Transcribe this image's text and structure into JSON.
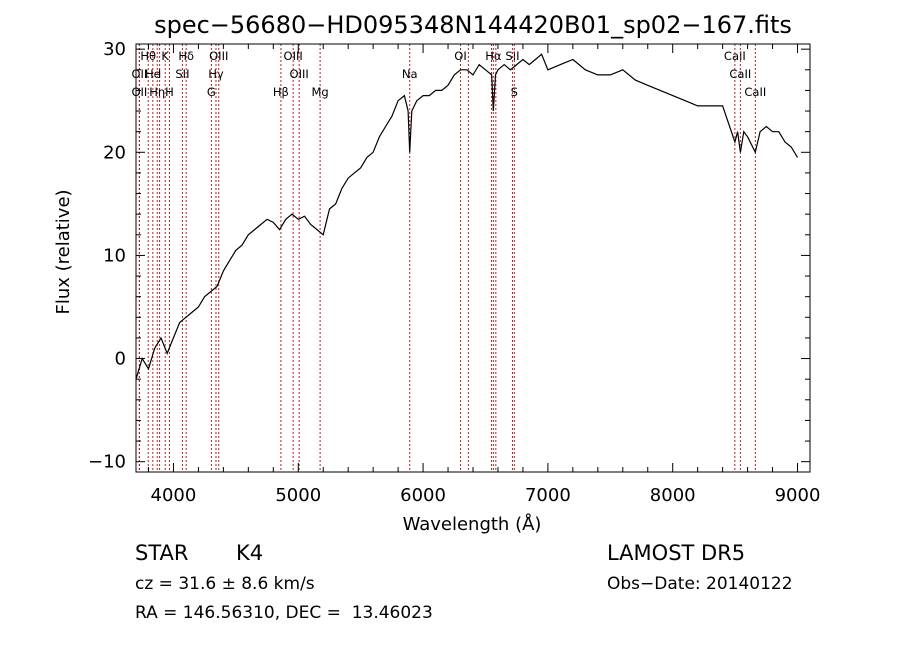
{
  "chart_data": {
    "type": "line",
    "title": "spec−56680−HD095348N144420B01_sp02−167.fits",
    "xlabel": "Wavelength (Å)",
    "ylabel": "Flux (relative)",
    "xlim": [
      3700,
      9100
    ],
    "ylim": [
      -11,
      30.5
    ],
    "xticks": [
      4000,
      5000,
      6000,
      7000,
      8000,
      9000
    ],
    "yticks": [
      -10,
      0,
      10,
      20,
      30
    ],
    "ytick_labels": [
      "−10",
      "0",
      "10",
      "20",
      "30"
    ],
    "grid": false,
    "series": [
      {
        "x": [
          3700,
          3750,
          3800,
          3850,
          3900,
          3950,
          4000,
          4050,
          4100,
          4150,
          4200,
          4250,
          4300,
          4350,
          4400,
          4450,
          4500,
          4550,
          4600,
          4650,
          4700,
          4750,
          4800,
          4850,
          4900,
          4950,
          5000,
          5050,
          5100,
          5150,
          5200,
          5250,
          5300,
          5350,
          5400,
          5450,
          5500,
          5550,
          5600,
          5650,
          5700,
          5750,
          5800,
          5850,
          5880,
          5893,
          5910,
          5950,
          6000,
          6050,
          6100,
          6150,
          6200,
          6250,
          6300,
          6350,
          6400,
          6450,
          6500,
          6550,
          6563,
          6580,
          6600,
          6650,
          6700,
          6750,
          6800,
          6850,
          6900,
          6950,
          7000,
          7100,
          7200,
          7300,
          7400,
          7500,
          7600,
          7700,
          7800,
          7900,
          8000,
          8100,
          8200,
          8300,
          8400,
          8498,
          8520,
          8542,
          8570,
          8600,
          8662,
          8700,
          8750,
          8800,
          8850,
          8900,
          8950,
          9000
        ],
        "y": [
          -2,
          0,
          -1,
          1,
          2,
          0.5,
          2,
          3.5,
          4,
          4.5,
          5,
          6,
          6.5,
          7,
          8.5,
          9.5,
          10.5,
          11,
          12,
          12.5,
          13,
          13.5,
          13.2,
          12.5,
          13.5,
          14,
          13.5,
          13.8,
          13,
          12.5,
          12,
          14.5,
          15,
          16.5,
          17.5,
          18,
          18.5,
          19.5,
          20,
          21.5,
          22.5,
          23.5,
          25,
          25.5,
          24,
          20,
          24,
          25,
          25.5,
          25.5,
          26,
          26,
          26.5,
          27.5,
          28,
          28,
          27.5,
          28.5,
          28,
          27.5,
          24,
          27.5,
          28,
          28.5,
          28,
          28.5,
          29,
          28.5,
          29,
          29.5,
          28,
          28.5,
          29,
          28,
          27.5,
          27.5,
          28,
          27,
          26.5,
          26,
          25.5,
          25,
          24.5,
          24.5,
          24.5,
          21,
          22,
          20,
          22,
          21.5,
          20,
          22,
          22.5,
          22,
          22,
          21,
          20.5,
          19.5
        ]
      }
    ],
    "annotation_lines": [
      {
        "wavelength": 3798,
        "label": "Hθ",
        "row": 0
      },
      {
        "wavelength": 3727,
        "label": "OII",
        "row": 1
      },
      {
        "wavelength": 3727,
        "label": "OII",
        "row": 2
      },
      {
        "wavelength": 3835,
        "label": "He",
        "row": 1
      },
      {
        "wavelength": 3889,
        "label": "I",
        "row": 1
      },
      {
        "wavelength": 3870,
        "label": "Hη",
        "row": 2
      },
      {
        "wavelength": 3934,
        "label": "K",
        "row": 0
      },
      {
        "wavelength": 3968,
        "label": "H",
        "row": 2
      },
      {
        "wavelength": 4102,
        "label": "Hδ",
        "row": 0
      },
      {
        "wavelength": 4072,
        "label": "SII",
        "row": 1
      },
      {
        "wavelength": 4341,
        "label": "Hγ",
        "row": 1
      },
      {
        "wavelength": 4304,
        "label": "G",
        "row": 2
      },
      {
        "wavelength": 4363,
        "label": "OIII",
        "row": 0
      },
      {
        "wavelength": 4861,
        "label": "Hβ",
        "row": 2
      },
      {
        "wavelength": 4959,
        "label": "OIII",
        "row": 0
      },
      {
        "wavelength": 5007,
        "label": "OIII",
        "row": 1
      },
      {
        "wavelength": 5175,
        "label": "Mg",
        "row": 2
      },
      {
        "wavelength": 5893,
        "label": "Na",
        "row": 1
      },
      {
        "wavelength": 6300,
        "label": "OI",
        "row": 0
      },
      {
        "wavelength": 6363,
        "label": "",
        "row": 0
      },
      {
        "wavelength": 6548,
        "label": "",
        "row": 0
      },
      {
        "wavelength": 6563,
        "label": "Hα",
        "row": 0
      },
      {
        "wavelength": 6583,
        "label": "",
        "row": 0
      },
      {
        "wavelength": 6716,
        "label": "SII",
        "row": 0
      },
      {
        "wavelength": 6731,
        "label": "S",
        "row": 2
      },
      {
        "wavelength": 8498,
        "label": "CaII",
        "row": 0
      },
      {
        "wavelength": 8542,
        "label": "CaII",
        "row": 1
      },
      {
        "wavelength": 8662,
        "label": "CaII",
        "row": 2
      }
    ]
  },
  "info": {
    "object_type": "STAR",
    "subclass": "K4",
    "survey": "LAMOST DR5",
    "cz": "cz = 31.6 ± 8.6 km/s",
    "obs_date": "Obs−Date: 20140122",
    "coords": "RA = 146.56310, DEC =  13.46023"
  }
}
